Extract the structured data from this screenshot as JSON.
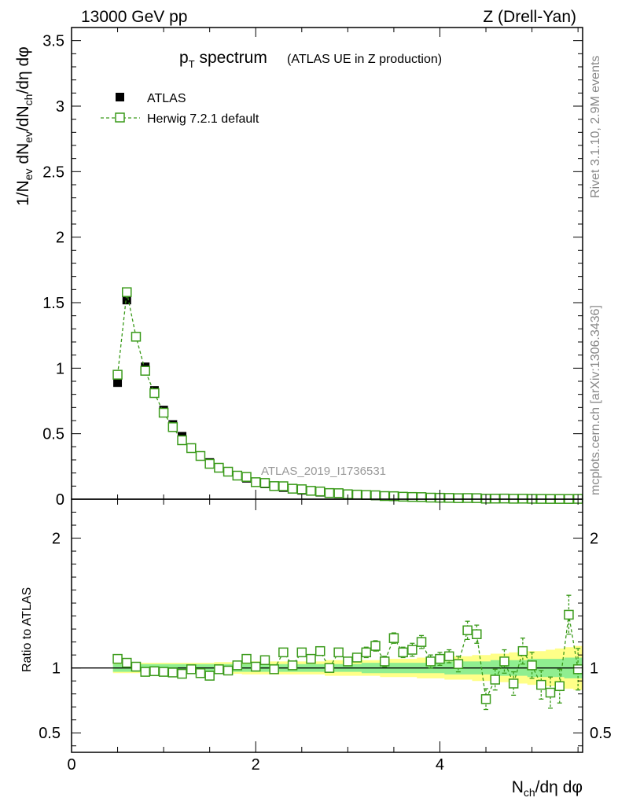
{
  "header": {
    "left": "13000 GeV pp",
    "right": "Z (Drell-Yan)"
  },
  "side_labels": {
    "rivet": "Rivet 3.1.10,  2.9M events",
    "mcplots": "mcplots.cern.ch [arXiv:1306.3436]"
  },
  "colors": {
    "data": "#000000",
    "mc": "#3a9a1a",
    "band_inner": "#90ee90",
    "band_outer": "#ffff88"
  },
  "chart_data": [
    {
      "type": "scatter",
      "title_main": "p",
      "title_sub": "T",
      "title_rest": " spectrum",
      "title_note": "(ATLAS UE in Z production)",
      "ylabel": "1/N_ev dN_ev/dN_ch/dη dφ",
      "ylim": [
        0,
        3.6
      ],
      "xlim": [
        0,
        5.55
      ],
      "yticks": [
        "0",
        "0.5",
        "1",
        "1.5",
        "2",
        "2.5",
        "3",
        "3.5"
      ],
      "watermark": "ATLAS_2019_I1736531",
      "legend": [
        {
          "name": "ATLAS",
          "marker": "filled-square"
        },
        {
          "name": "Herwig 7.2.1 default",
          "marker": "open-square-dashed"
        }
      ],
      "x": [
        0.5,
        0.6,
        0.7,
        0.8,
        0.9,
        1.0,
        1.1,
        1.2,
        1.3,
        1.4,
        1.5,
        1.6,
        1.7,
        1.8,
        1.9,
        2.0,
        2.1,
        2.2,
        2.3,
        2.4,
        2.5,
        2.6,
        2.7,
        2.8,
        2.9,
        3.0,
        3.1,
        3.2,
        3.3,
        3.4,
        3.5,
        3.6,
        3.7,
        3.8,
        3.9,
        4.0,
        4.1,
        4.2,
        4.3,
        4.4,
        4.5,
        4.6,
        4.7,
        4.8,
        4.9,
        5.0,
        5.1,
        5.2,
        5.3,
        5.4,
        5.5
      ],
      "series": [
        {
          "name": "ATLAS",
          "values": [
            0.89,
            1.52,
            1.24,
            1.01,
            0.83,
            0.68,
            0.57,
            0.48,
            0.39,
            0.33,
            0.28,
            0.24,
            0.21,
            0.18,
            0.16,
            0.13,
            0.117,
            0.101,
            0.089,
            0.078,
            0.068,
            0.06,
            0.053,
            0.047,
            0.041,
            0.036,
            0.032,
            0.028,
            0.025,
            0.022,
            0.019,
            0.017,
            0.015,
            0.013,
            0.012,
            0.01,
            0.009,
            0.008,
            0.007,
            0.006,
            0.0055,
            0.005,
            0.0045,
            0.004,
            0.0035,
            0.003,
            0.0028,
            0.0025,
            0.0022,
            0.002,
            0.0018
          ]
        },
        {
          "name": "Herwig 7.2.1 default",
          "values": [
            0.95,
            1.58,
            1.24,
            0.98,
            0.81,
            0.66,
            0.55,
            0.45,
            0.39,
            0.33,
            0.27,
            0.24,
            0.21,
            0.18,
            0.17,
            0.13,
            0.124,
            0.1,
            0.099,
            0.08,
            0.076,
            0.064,
            0.059,
            0.047,
            0.046,
            0.038,
            0.035,
            0.032,
            0.03,
            0.024,
            0.023,
            0.019,
            0.017,
            0.016,
            0.012,
            0.011,
            0.01,
            0.008,
            0.009,
            0.008,
            0.004,
            0.0045,
            0.005,
            0.0035,
            0.004,
            0.003,
            0.0024,
            0.002,
            0.0019,
            0.0017,
            0.0025
          ]
        }
      ]
    },
    {
      "type": "scatter",
      "ylabel": "Ratio to ATLAS",
      "xlabel": "N_ch/dη dφ",
      "ylim": [
        0.35,
        2.3
      ],
      "xlim": [
        0,
        5.55
      ],
      "yticks": [
        "0.5",
        "1",
        "2"
      ],
      "xticks": [
        "0",
        "2",
        "4"
      ],
      "reference": 1,
      "x": [
        0.5,
        0.6,
        0.7,
        0.8,
        0.9,
        1.0,
        1.1,
        1.2,
        1.3,
        1.4,
        1.5,
        1.6,
        1.7,
        1.8,
        1.9,
        2.0,
        2.1,
        2.2,
        2.3,
        2.4,
        2.5,
        2.6,
        2.7,
        2.8,
        2.9,
        3.0,
        3.1,
        3.2,
        3.3,
        3.4,
        3.5,
        3.6,
        3.7,
        3.8,
        3.9,
        4.0,
        4.1,
        4.2,
        4.3,
        4.4,
        4.5,
        4.6,
        4.7,
        4.8,
        4.9,
        5.0,
        5.1,
        5.2,
        5.3,
        5.4,
        5.5
      ],
      "ratio": [
        1.07,
        1.04,
        1.01,
        0.97,
        0.975,
        0.97,
        0.965,
        0.955,
        0.99,
        0.96,
        0.94,
        0.99,
        0.98,
        1.02,
        1.07,
        1.01,
        1.06,
        0.99,
        1.12,
        1.02,
        1.12,
        1.07,
        1.13,
        1.0,
        1.12,
        1.05,
        1.08,
        1.12,
        1.17,
        1.05,
        1.23,
        1.12,
        1.14,
        1.2,
        1.05,
        1.07,
        1.09,
        1.03,
        1.29,
        1.26,
        0.76,
        0.91,
        1.05,
        0.88,
        1.13,
        1.02,
        0.87,
        0.81,
        0.86,
        1.41,
        0.99
      ],
      "ratio_err": [
        0.02,
        0.02,
        0.02,
        0.02,
        0.02,
        0.02,
        0.02,
        0.02,
        0.02,
        0.02,
        0.02,
        0.02,
        0.02,
        0.02,
        0.02,
        0.02,
        0.02,
        0.02,
        0.03,
        0.03,
        0.03,
        0.03,
        0.03,
        0.03,
        0.03,
        0.03,
        0.03,
        0.04,
        0.04,
        0.04,
        0.04,
        0.04,
        0.05,
        0.05,
        0.05,
        0.05,
        0.05,
        0.06,
        0.07,
        0.07,
        0.08,
        0.08,
        0.09,
        0.09,
        0.1,
        0.1,
        0.11,
        0.12,
        0.13,
        0.15,
        0.16
      ],
      "band_inner": [
        0.03,
        0.03,
        0.03,
        0.03,
        0.03,
        0.03,
        0.03,
        0.03,
        0.03,
        0.03,
        0.03,
        0.03,
        0.03,
        0.03,
        0.03,
        0.03,
        0.03,
        0.03,
        0.03,
        0.03,
        0.03,
        0.03,
        0.03,
        0.03,
        0.03,
        0.03,
        0.03,
        0.04,
        0.04,
        0.04,
        0.04,
        0.04,
        0.04,
        0.04,
        0.04,
        0.04,
        0.05,
        0.05,
        0.05,
        0.05,
        0.05,
        0.06,
        0.06,
        0.06,
        0.06,
        0.07,
        0.07,
        0.07,
        0.07,
        0.08,
        0.08
      ],
      "band_outer": [
        0.04,
        0.04,
        0.04,
        0.04,
        0.04,
        0.04,
        0.04,
        0.04,
        0.04,
        0.04,
        0.04,
        0.045,
        0.045,
        0.045,
        0.05,
        0.05,
        0.05,
        0.05,
        0.05,
        0.05,
        0.05,
        0.05,
        0.05,
        0.06,
        0.06,
        0.06,
        0.06,
        0.06,
        0.06,
        0.07,
        0.07,
        0.07,
        0.07,
        0.08,
        0.08,
        0.08,
        0.09,
        0.09,
        0.09,
        0.1,
        0.1,
        0.11,
        0.11,
        0.12,
        0.12,
        0.13,
        0.13,
        0.14,
        0.15,
        0.16,
        0.17
      ]
    }
  ]
}
